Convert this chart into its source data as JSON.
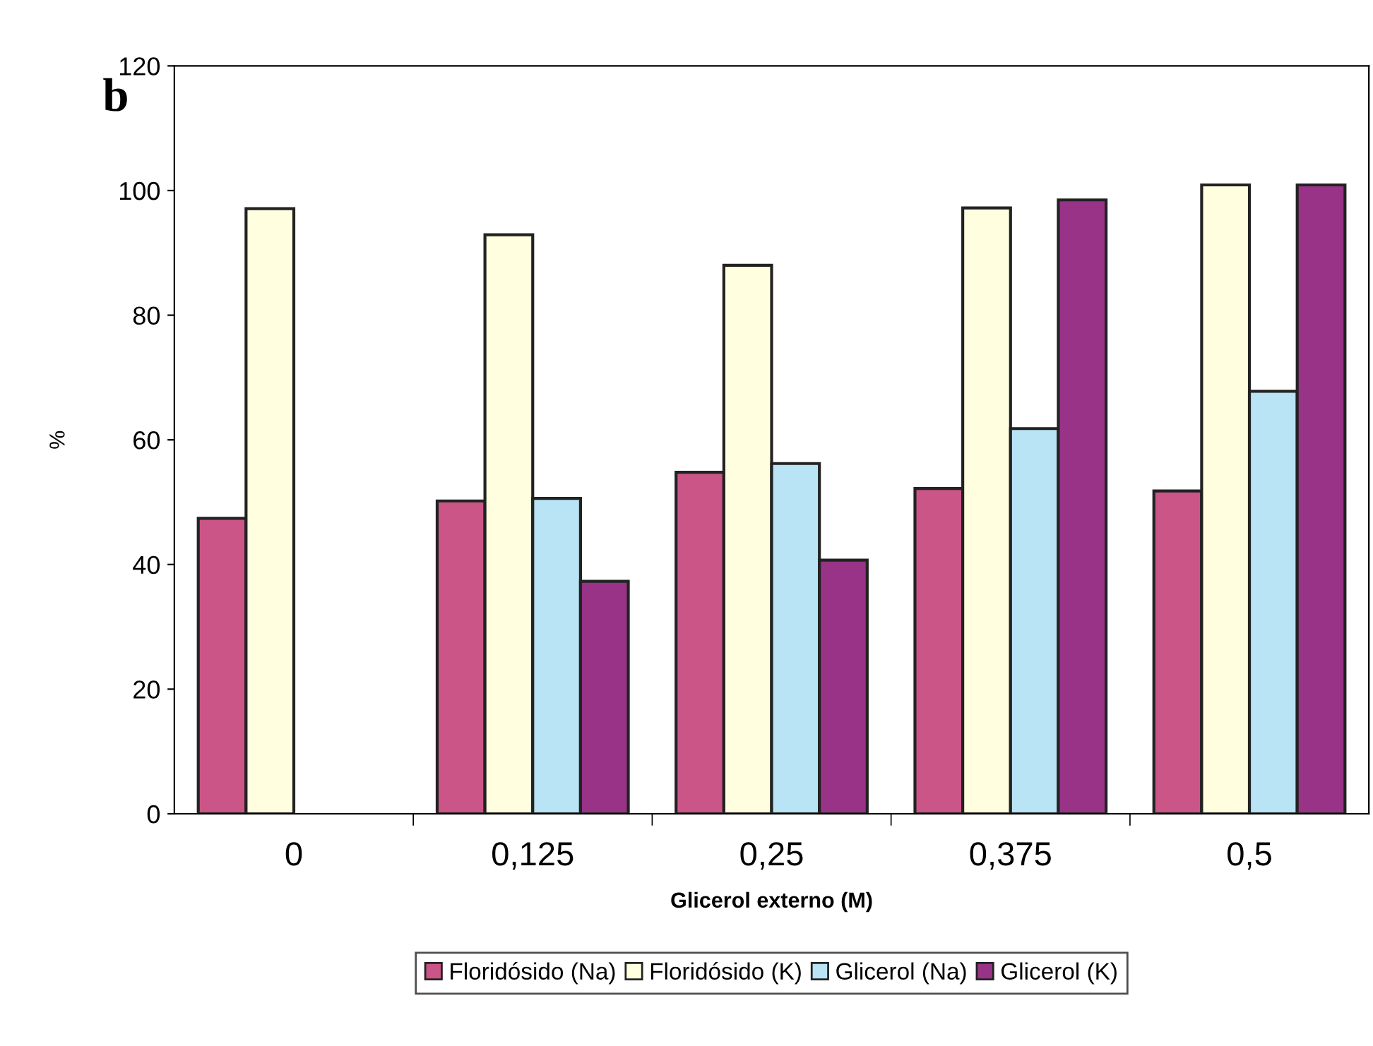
{
  "chart_data": {
    "type": "bar",
    "xlabel": "Glicerol externo (M)",
    "ylabel": "%",
    "categories": [
      "0",
      "0,125",
      "0,25",
      "0,375",
      "0,5"
    ],
    "series": [
      {
        "name": "Floridósido (Na)",
        "color": "#cc5588",
        "values": [
          47.4,
          50.2,
          54.8,
          52.2,
          51.8
        ]
      },
      {
        "name": "Floridósido (K)",
        "color": "#ffffe0",
        "values": [
          97.1,
          92.9,
          88.0,
          97.2,
          100.9
        ]
      },
      {
        "name": "Glicerol (Na)",
        "color": "#b8e4f5",
        "values": [
          null,
          50.6,
          56.2,
          61.8,
          67.8
        ]
      },
      {
        "name": "Glicerol (K)",
        "color": "#993388",
        "values": [
          null,
          37.3,
          40.7,
          98.5,
          100.9
        ]
      }
    ],
    "ylim": [
      0,
      120
    ],
    "yticks": [
      0,
      20,
      40,
      60,
      80,
      100,
      120
    ],
    "grid": false,
    "legend": "bottom",
    "annotations": [
      "b"
    ]
  }
}
